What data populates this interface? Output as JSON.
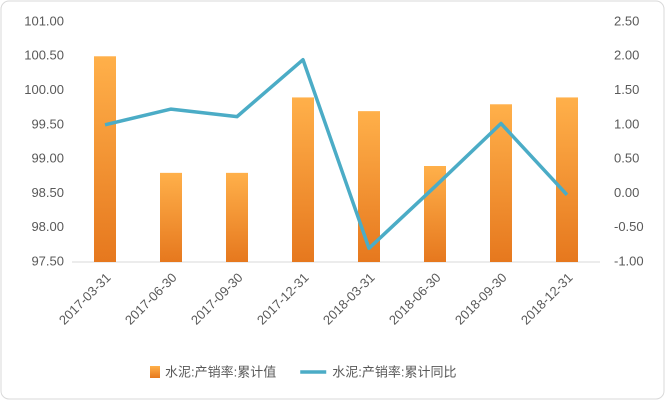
{
  "chart_data": {
    "type": "bar-line",
    "categories": [
      "2017-03-31",
      "2017-06-30",
      "2017-09-30",
      "2017-12-31",
      "2018-03-31",
      "2018-06-30",
      "2018-09-30",
      "2018-12-31"
    ],
    "series": [
      {
        "name": "水泥:产销率:累计值",
        "color": "#f5922f",
        "type": "bar",
        "values": [
          100.5,
          98.8,
          98.8,
          99.9,
          99.7,
          98.9,
          99.8,
          99.9
        ]
      },
      {
        "name": "水泥:产销率:累计同比",
        "color": "#4bacc6",
        "type": "line",
        "axis": "y2",
        "values": [
          1.0,
          1.23,
          1.12,
          1.95,
          -0.8,
          0.1,
          1.02,
          -0.02
        ]
      }
    ],
    "ylim": [
      97.5,
      101
    ],
    "yticks": [
      {
        "value": 97.5,
        "label": "97.50"
      },
      {
        "value": 98,
        "label": "98.00"
      },
      {
        "value": 98.5,
        "label": "98.50"
      },
      {
        "value": 99,
        "label": "99.00"
      },
      {
        "value": 99.5,
        "label": "99.50"
      },
      {
        "value": 100,
        "label": "100.00"
      },
      {
        "value": 100.5,
        "label": "100.50"
      },
      {
        "value": 101,
        "label": "101.00"
      }
    ],
    "y2lim": [
      -1,
      2.5
    ],
    "y2ticks": [
      {
        "value": -1,
        "label": "-1.00"
      },
      {
        "value": -0.5,
        "label": "-0.50"
      },
      {
        "value": 0,
        "label": "0.00"
      },
      {
        "value": 0.5,
        "label": "0.50"
      },
      {
        "value": 1,
        "label": "1.00"
      },
      {
        "value": 1.5,
        "label": "1.50"
      },
      {
        "value": 2,
        "label": "2.00"
      },
      {
        "value": 2.5,
        "label": "2.50"
      }
    ],
    "grid": false
  }
}
